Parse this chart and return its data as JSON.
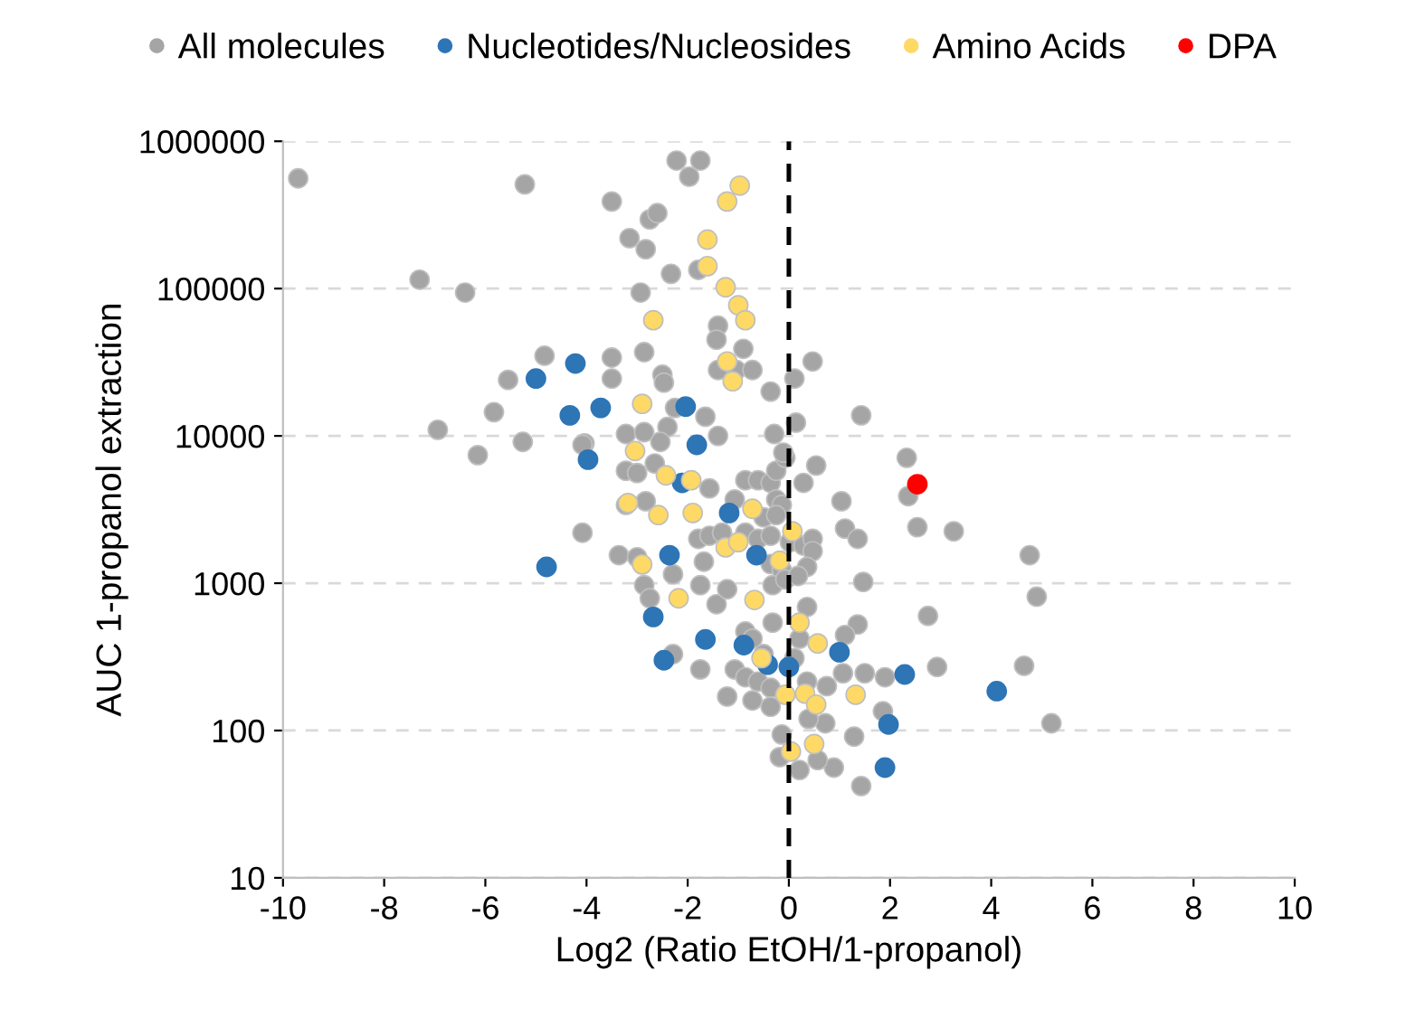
{
  "chart_data": {
    "type": "scatter",
    "xlabel": "Log2 (Ratio EtOH/1-propanol)",
    "ylabel": "AUC 1-propanol extraction",
    "log": "y",
    "xlim": [
      -10,
      10
    ],
    "xticks": [
      -10,
      -8,
      -6,
      -4,
      -2,
      0,
      2,
      4,
      6,
      8,
      10
    ],
    "ylim": [
      10,
      1000000
    ],
    "yticks": [
      10,
      100,
      1000,
      10000,
      100000,
      1000000
    ],
    "grid": "y",
    "legend": "top",
    "marker": "circle",
    "ref_lines": [
      {
        "axis": "x",
        "value": 0,
        "color": "#000000",
        "line_style": "dashed"
      }
    ],
    "series": [
      {
        "name": "All molecules",
        "color": "#a5a5a5",
        "x": [
          -9.7,
          -5.22,
          -3.5,
          -2.22,
          -1.75,
          -1.97,
          -2.75,
          -2.6,
          -3.15,
          -2.83,
          -2.33,
          -1.79,
          -7.3,
          -6.4,
          -2.93,
          -1.4,
          -1.43,
          -0.9,
          -2.86,
          -4.83,
          -3.5,
          -5.55,
          -3.5,
          -2.5,
          -2.47,
          -1.4,
          -1.04,
          -0.72,
          -0.36,
          0.11,
          0.47,
          -5.83,
          -2.25,
          -1.65,
          -6.94,
          -3.22,
          -2.86,
          -2.4,
          -2.54,
          -1.4,
          -0.29,
          0.14,
          -5.26,
          -6.15,
          -4.04,
          -4.08,
          -3.22,
          -3.0,
          -2.65,
          -2.83,
          -3.22,
          -1.57,
          -0.86,
          -0.61,
          -0.36,
          -0.25,
          -0.07,
          0.29,
          -1.07,
          -0.25,
          -0.14,
          -0.5,
          -0.25,
          -1.79,
          -1.57,
          -1.32,
          -0.86,
          -0.61,
          -0.36,
          0.02,
          0.29,
          -4.08,
          -3.36,
          -3.0,
          -2.29,
          -1.68,
          -0.36,
          -0.14,
          -2.86,
          -2.75,
          -1.75,
          -1.43,
          -1.22,
          -0.32,
          -0.07,
          -2.29,
          -1.75,
          -0.32,
          -0.86,
          -0.72,
          -0.5,
          -1.07,
          -0.86,
          -0.61,
          -0.36,
          -1.22,
          -0.72,
          -0.36,
          0.11,
          0.21,
          0.36,
          -0.14,
          0.21,
          -0.18,
          1.43,
          2.33,
          0.54,
          -0.11,
          1.04,
          2.36,
          2.54,
          3.26,
          1.11,
          1.36,
          4.76,
          1.47,
          0.47,
          0.47,
          0.36,
          0.18,
          4.9,
          2.75,
          1.36,
          1.11,
          0.36,
          4.65,
          2.93,
          1.5,
          1.9,
          1.07,
          0.75,
          5.19,
          1.86,
          1.29,
          0.89,
          1.43,
          0.57,
          0.72,
          0.39
        ],
        "values": [
          560000,
          510000,
          390000,
          740000,
          740000,
          575000,
          295000,
          325000,
          220000,
          185000,
          126000,
          134000,
          115000,
          94000,
          94000,
          56000,
          45000,
          39000,
          37000,
          35000,
          34000,
          24000,
          24500,
          26000,
          23000,
          28000,
          28000,
          28000,
          20000,
          24500,
          32000,
          14500,
          15500,
          13500,
          11000,
          10300,
          10600,
          11500,
          9100,
          10000,
          10300,
          12300,
          9100,
          7400,
          8900,
          8700,
          5800,
          5600,
          6500,
          3600,
          3400,
          4400,
          5000,
          5000,
          4800,
          5800,
          7100,
          4800,
          3700,
          3700,
          3400,
          2800,
          2900,
          2000,
          2100,
          2200,
          2200,
          2000,
          2100,
          1900,
          1800,
          2200,
          1550,
          1500,
          1150,
          1400,
          1350,
          1230,
          970,
          790,
          970,
          720,
          910,
          970,
          1060,
          330,
          260,
          540,
          470,
          420,
          330,
          260,
          230,
          215,
          195,
          170,
          160,
          145,
          310,
          420,
          215,
          94,
          54,
          66,
          13800,
          7100,
          6300,
          7700,
          3600,
          3900,
          2400,
          2250,
          2350,
          2000,
          1550,
          1020,
          2000,
          1650,
          1290,
          1120,
          810,
          600,
          525,
          445,
          690,
          275,
          270,
          245,
          230,
          245,
          200,
          112,
          135,
          91,
          56,
          42,
          63,
          112,
          120
        ]
      },
      {
        "name": "Nucleotides/Nucleosides",
        "color": "#2e75b6",
        "x": [
          -5.0,
          -4.22,
          -4.33,
          -3.72,
          -2.04,
          -1.82,
          -3.97,
          -2.11,
          -1.18,
          -2.36,
          -0.64,
          -4.79,
          -2.68,
          -1.65,
          -0.89,
          -2.47,
          -0.42,
          0.0,
          1.0,
          2.29,
          4.11,
          1.97,
          1.9
        ],
        "values": [
          24500,
          31000,
          13800,
          15500,
          15800,
          8700,
          6900,
          4800,
          3000,
          1550,
          1550,
          1290,
          590,
          415,
          380,
          300,
          280,
          270,
          340,
          240,
          185,
          110,
          56
        ]
      },
      {
        "name": "Amino Acids",
        "color": "#ffd966",
        "x": [
          -0.97,
          -1.22,
          -1.61,
          -1.61,
          -1.25,
          -1.0,
          -0.86,
          -2.68,
          -1.22,
          -1.11,
          -2.9,
          -3.04,
          -2.43,
          -1.93,
          -3.18,
          -2.58,
          -1.9,
          -0.72,
          0.07,
          -1.25,
          -1.0,
          -2.9,
          -0.18,
          -2.18,
          -0.68,
          0.21,
          0.57,
          -0.54,
          -0.07,
          0.32,
          0.54,
          1.32,
          0.04,
          0.5
        ],
        "values": [
          500000,
          390000,
          215000,
          142000,
          102000,
          77000,
          61000,
          61000,
          32000,
          23500,
          16500,
          7900,
          5400,
          5000,
          3500,
          2900,
          3000,
          3200,
          2250,
          1750,
          1900,
          1340,
          1420,
          790,
          770,
          540,
          390,
          310,
          175,
          178,
          150,
          175,
          72,
          81
        ]
      },
      {
        "name": "DPA",
        "color": "#ff0000",
        "x": [
          2.54
        ],
        "values": [
          4700
        ]
      }
    ]
  }
}
